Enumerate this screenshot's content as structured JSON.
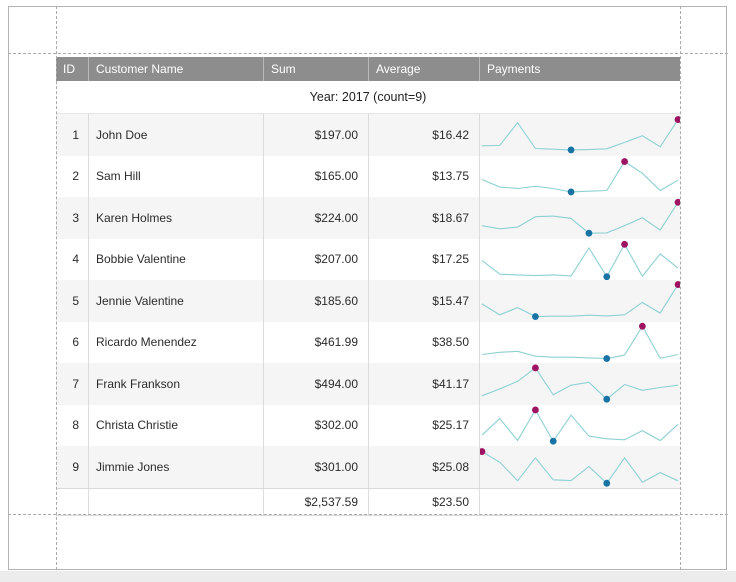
{
  "colors": {
    "spark_line": "#8ed1d3",
    "min_marker": "#1a73a5",
    "max_marker": "#9e1462",
    "header_bg": "#8d8d8d",
    "header_text": "#ffffff",
    "alt_row_bg": "#f5f5f5"
  },
  "table": {
    "columns": [
      "ID",
      "Customer Name",
      "Sum",
      "Average",
      "Payments"
    ],
    "group_header": "Year: 2017 (count=9)",
    "rows": [
      {
        "id": "1",
        "name": "John Doe",
        "sum": "$197.00",
        "average": "$16.42",
        "spark": {
          "values": [
            18,
            19,
            85,
            10,
            8,
            6,
            7,
            9,
            28,
            47,
            15,
            94
          ],
          "min_index": 5,
          "max_index": 11
        }
      },
      {
        "id": "2",
        "name": "Sam Hill",
        "sum": "$165.00",
        "average": "$13.75",
        "spark": {
          "values": [
            42,
            20,
            16,
            22,
            16,
            6,
            8,
            10,
            94,
            60,
            10,
            40
          ],
          "min_index": 5,
          "max_index": 8
        }
      },
      {
        "id": "3",
        "name": "Karen Holmes",
        "sum": "$224.00",
        "average": "$18.67",
        "spark": {
          "values": [
            27,
            18,
            23,
            53,
            55,
            48,
            5,
            6,
            27,
            50,
            14,
            95
          ],
          "min_index": 6,
          "max_index": 11
        }
      },
      {
        "id": "4",
        "name": "Bobbie Valentine",
        "sum": "$207.00",
        "average": "$17.25",
        "spark": {
          "values": [
            48,
            8,
            6,
            4,
            6,
            3,
            84,
            1,
            95,
            2,
            67,
            26
          ],
          "min_index": 7,
          "max_index": 8
        }
      },
      {
        "id": "5",
        "name": "Jennie Valentine",
        "sum": "$185.60",
        "average": "$15.47",
        "spark": {
          "values": [
            41,
            9,
            30,
            4,
            5,
            5,
            8,
            6,
            9,
            45,
            14,
            97
          ],
          "min_index": 3,
          "max_index": 11
        }
      },
      {
        "id": "6",
        "name": "Ricardo Menendez",
        "sum": "$461.99",
        "average": "$38.50",
        "spark": {
          "values": [
            16,
            22,
            25,
            11,
            8,
            8,
            6,
            4,
            14,
            98,
            5,
            16
          ],
          "min_index": 7,
          "max_index": 9
        }
      },
      {
        "id": "7",
        "name": "Frank Frankson",
        "sum": "$494.00",
        "average": "$41.17",
        "spark": {
          "values": [
            15,
            35,
            57,
            96,
            18,
            46,
            54,
            5,
            48,
            31,
            39,
            46
          ],
          "min_index": 7,
          "max_index": 3
        }
      },
      {
        "id": "8",
        "name": "Christa Christie",
        "sum": "$302.00",
        "average": "$25.17",
        "spark": {
          "values": [
            23,
            71,
            7,
            96,
            5,
            81,
            20,
            12,
            9,
            36,
            7,
            54
          ],
          "min_index": 4,
          "max_index": 3
        }
      },
      {
        "id": "9",
        "name": "Jimmie Jones",
        "sum": "$301.00",
        "average": "$25.08",
        "spark": {
          "values": [
            94,
            63,
            9,
            76,
            12,
            10,
            51,
            2,
            76,
            5,
            33,
            9
          ],
          "min_index": 7,
          "max_index": 0
        }
      }
    ],
    "footer": {
      "sum": "$2,537.59",
      "average": "$23.50"
    }
  }
}
